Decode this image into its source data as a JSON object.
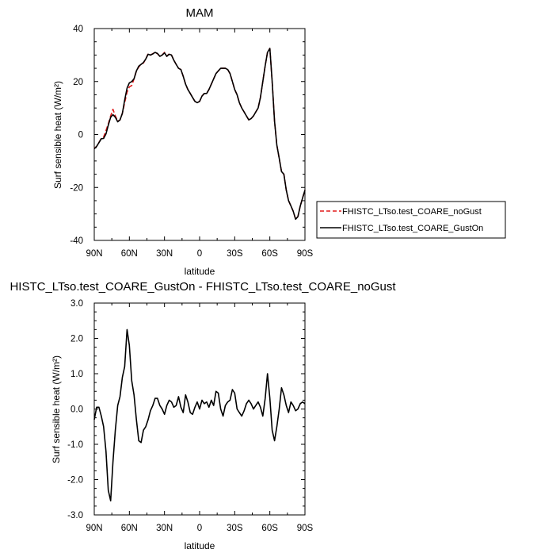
{
  "chart_data": [
    {
      "type": "line",
      "title": "MAM",
      "xlabel": "latitude",
      "ylabel": "Surf sensible heat (W/m²)",
      "xlim": [
        90,
        -90
      ],
      "ylim": [
        -40,
        40
      ],
      "x_ticks": [
        90,
        60,
        30,
        0,
        -30,
        -60,
        -90
      ],
      "x_tick_labels": [
        "90N",
        "60N",
        "30N",
        "0",
        "30S",
        "60S",
        "90S"
      ],
      "y_ticks": [
        -40,
        -20,
        0,
        20,
        40
      ],
      "y_tick_labels": [
        "-40",
        "-20",
        "0",
        "20",
        "40"
      ],
      "legend_position": "right",
      "series": [
        {
          "name": "FHISTC_LTso.test_COARE_noGust",
          "color": "#e21a1a",
          "dash": "dashed",
          "x": [
            90,
            88,
            86,
            84,
            82,
            80,
            78,
            76,
            74,
            72,
            70,
            68,
            66,
            64,
            62,
            60,
            58,
            56,
            54,
            52,
            50,
            48,
            46,
            44,
            42,
            40,
            38,
            36,
            34,
            32,
            30,
            28,
            26,
            24,
            22,
            20,
            18,
            16,
            14,
            12,
            10,
            8,
            6,
            4,
            2,
            0,
            -2,
            -4,
            -6,
            -8,
            -10,
            -12,
            -14,
            -16,
            -18,
            -20,
            -22,
            -24,
            -26,
            -28,
            -30,
            -32,
            -34,
            -36,
            -38,
            -40,
            -42,
            -44,
            -46,
            -48,
            -50,
            -52,
            -54,
            -56,
            -58,
            -60,
            -62,
            -64,
            -66,
            -68,
            -70,
            -72,
            -74,
            -76,
            -78,
            -80,
            -82,
            -84,
            -86,
            -88,
            -90
          ],
          "values": [
            -5.2,
            -4.5,
            -3,
            -1.5,
            -1,
            1.5,
            4,
            7,
            9.5,
            7,
            5,
            5.5,
            8,
            12,
            16,
            18,
            18.5,
            21,
            24,
            25.5,
            26.5,
            27,
            28.5,
            30.5,
            30,
            30.5,
            31,
            30.5,
            29.5,
            30,
            31,
            29.5,
            30.5,
            30,
            28,
            26.5,
            25,
            24.5,
            22,
            19,
            17,
            15.5,
            14,
            12.5,
            12,
            12.5,
            14.5,
            15.5,
            15.5,
            17,
            19,
            21,
            23,
            24,
            25,
            25,
            25,
            24.5,
            23,
            20,
            17,
            15,
            12,
            10,
            8.5,
            7,
            5.5,
            6,
            7,
            8.5,
            10,
            14,
            20,
            26,
            31,
            32.5,
            20,
            5,
            -4,
            -9,
            -14,
            -15,
            -21,
            -25,
            -27,
            -29,
            -32,
            -31,
            -27,
            -24,
            -21
          ]
        },
        {
          "name": "FHISTC_LTso.test_COARE_GustOn",
          "color": "#000000",
          "dash": "solid",
          "x": [
            90,
            88,
            86,
            84,
            82,
            80,
            78,
            76,
            74,
            72,
            70,
            68,
            66,
            64,
            62,
            60,
            58,
            56,
            54,
            52,
            50,
            48,
            46,
            44,
            42,
            40,
            38,
            36,
            34,
            32,
            30,
            28,
            26,
            24,
            22,
            20,
            18,
            16,
            14,
            12,
            10,
            8,
            6,
            4,
            2,
            0,
            -2,
            -4,
            -6,
            -8,
            -10,
            -12,
            -14,
            -16,
            -18,
            -20,
            -22,
            -24,
            -26,
            -28,
            -30,
            -32,
            -34,
            -36,
            -38,
            -40,
            -42,
            -44,
            -46,
            -48,
            -50,
            -52,
            -54,
            -56,
            -58,
            -60,
            -62,
            -64,
            -66,
            -68,
            -70,
            -72,
            -74,
            -76,
            -78,
            -80,
            -82,
            -84,
            -86,
            -88,
            -90
          ],
          "values": [
            -5.4,
            -4.5,
            -3.1,
            -1.6,
            -1.5,
            0.2,
            3.5,
            6.5,
            7.5,
            6.5,
            4.8,
            5.5,
            8,
            13,
            17.5,
            19.5,
            20,
            21,
            24,
            25.8,
            26.5,
            27.2,
            28.5,
            30.3,
            30,
            30.4,
            31,
            30.6,
            29.5,
            30,
            30.8,
            29.5,
            30.3,
            30,
            28,
            26.5,
            25,
            24.5,
            22,
            19,
            17,
            15.5,
            14,
            12.5,
            12,
            12.5,
            14.5,
            15.5,
            15.5,
            17,
            19,
            21,
            23,
            24,
            25,
            25,
            25,
            24.5,
            23,
            20,
            17,
            15,
            12,
            10,
            8.5,
            7,
            5.5,
            6,
            7,
            8.5,
            10,
            14,
            20,
            26,
            31,
            32.5,
            20,
            5,
            -4,
            -9,
            -14,
            -15,
            -21,
            -25,
            -27,
            -29,
            -32,
            -31,
            -27,
            -24,
            -21
          ]
        }
      ]
    },
    {
      "type": "line",
      "title": "HISTC_LTso.test_COARE_GustOn - FHISTC_LTso.test_COARE_noGust",
      "xlabel": "latitude",
      "ylabel": "Surf sensible heat (W/m²)",
      "xlim": [
        90,
        -90
      ],
      "ylim": [
        -3.0,
        3.0
      ],
      "x_ticks": [
        90,
        60,
        30,
        0,
        -30,
        -60,
        -90
      ],
      "x_tick_labels": [
        "90N",
        "60N",
        "30N",
        "0",
        "30S",
        "60S",
        "90S"
      ],
      "y_ticks": [
        -3,
        -2,
        -1,
        0,
        1,
        2,
        3
      ],
      "y_tick_labels": [
        "-3.0",
        "-2.0",
        "-1.0",
        "0.0",
        "1.0",
        "2.0",
        "3.0"
      ],
      "series": [
        {
          "color": "#000000",
          "dash": "solid",
          "x": [
            90,
            88,
            86,
            84,
            82,
            80,
            78,
            76,
            74,
            72,
            70,
            68,
            66,
            64,
            62,
            60,
            58,
            56,
            54,
            52,
            50,
            48,
            46,
            44,
            42,
            40,
            38,
            36,
            34,
            32,
            30,
            28,
            26,
            24,
            22,
            20,
            18,
            16,
            14,
            12,
            10,
            8,
            6,
            4,
            2,
            0,
            -2,
            -4,
            -6,
            -8,
            -10,
            -12,
            -14,
            -16,
            -18,
            -20,
            -22,
            -24,
            -26,
            -28,
            -30,
            -32,
            -34,
            -36,
            -38,
            -40,
            -42,
            -44,
            -46,
            -48,
            -50,
            -52,
            -54,
            -56,
            -58,
            -60,
            -62,
            -64,
            -66,
            -68,
            -70,
            -72,
            -74,
            -76,
            -78,
            -80,
            -82,
            -84,
            -86,
            -88,
            -90
          ],
          "values": [
            -0.3,
            0.05,
            0.05,
            -0.2,
            -0.5,
            -1.2,
            -2.3,
            -2.6,
            -1.5,
            -0.6,
            0.1,
            0.35,
            0.9,
            1.2,
            2.25,
            1.8,
            0.8,
            0.4,
            -0.3,
            -0.9,
            -0.95,
            -0.6,
            -0.5,
            -0.3,
            -0.05,
            0.1,
            0.3,
            0.3,
            0.1,
            0.0,
            -0.15,
            0.1,
            0.25,
            0.2,
            0.05,
            0.1,
            0.35,
            0.05,
            -0.1,
            0.4,
            0.2,
            -0.1,
            -0.15,
            0.05,
            0.2,
            0.0,
            0.25,
            0.15,
            0.2,
            0.05,
            0.25,
            0.1,
            0.5,
            0.45,
            0.0,
            -0.2,
            0.1,
            0.2,
            0.25,
            0.55,
            0.45,
            0.0,
            -0.1,
            -0.2,
            -0.05,
            0.15,
            0.25,
            0.15,
            0.0,
            0.1,
            0.2,
            0.05,
            -0.2,
            0.3,
            1.0,
            0.3,
            -0.6,
            -0.9,
            -0.5,
            0.0,
            0.6,
            0.4,
            0.1,
            -0.1,
            0.2,
            0.1,
            -0.05,
            0.0,
            0.15,
            0.2,
            0.15
          ]
        }
      ]
    }
  ]
}
